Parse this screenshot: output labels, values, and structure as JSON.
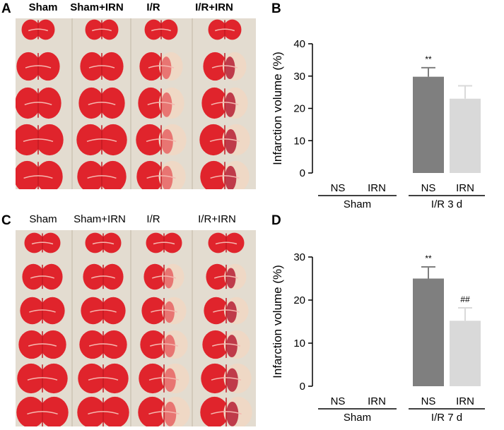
{
  "panels": [
    {
      "letter": "A",
      "columns": [
        "Sham",
        "Sham+IRN",
        "I/R",
        "I/R+IRN"
      ],
      "sections_per_column": 5
    },
    {
      "letter": "B"
    },
    {
      "letter": "C",
      "columns": [
        "Sham",
        "Sham+IRN",
        "I/R",
        "I/R+IRN"
      ],
      "sections_per_column": 6
    },
    {
      "letter": "D"
    }
  ],
  "colors": {
    "dark_bar": "#7f7f7f",
    "light_bar": "#d9d9d9",
    "tissue": "#e0242c",
    "infarct": "#efd8c5",
    "background": "#e3dcd0"
  },
  "chart_data": [
    {
      "type": "bar",
      "panel": "B",
      "categories": [
        "NS",
        "IRN",
        "NS",
        "IRN"
      ],
      "groups": [
        {
          "label": "Sham",
          "span": [
            0,
            1
          ]
        },
        {
          "label": "I/R 3 d",
          "span": [
            2,
            3
          ]
        }
      ],
      "values": [
        0,
        0,
        29.8,
        23.0
      ],
      "errors": [
        0,
        0,
        2.8,
        4.0
      ],
      "significance": [
        "",
        "",
        "**",
        ""
      ],
      "ylabel": "Infarction volume (%)",
      "ylim": [
        0,
        40
      ],
      "yticks": [
        0,
        10,
        20,
        30,
        40
      ]
    },
    {
      "type": "bar",
      "panel": "D",
      "categories": [
        "NS",
        "IRN",
        "NS",
        "IRN"
      ],
      "groups": [
        {
          "label": "Sham",
          "span": [
            0,
            1
          ]
        },
        {
          "label": "I/R 7 d",
          "span": [
            2,
            3
          ]
        }
      ],
      "values": [
        0,
        0,
        25.0,
        15.2
      ],
      "errors": [
        0,
        0,
        2.7,
        3.0
      ],
      "significance": [
        "",
        "",
        "**",
        "##"
      ],
      "ylabel": "Infarction volume (%)",
      "ylim": [
        0,
        30
      ],
      "yticks": [
        0,
        10,
        20,
        30
      ]
    }
  ]
}
